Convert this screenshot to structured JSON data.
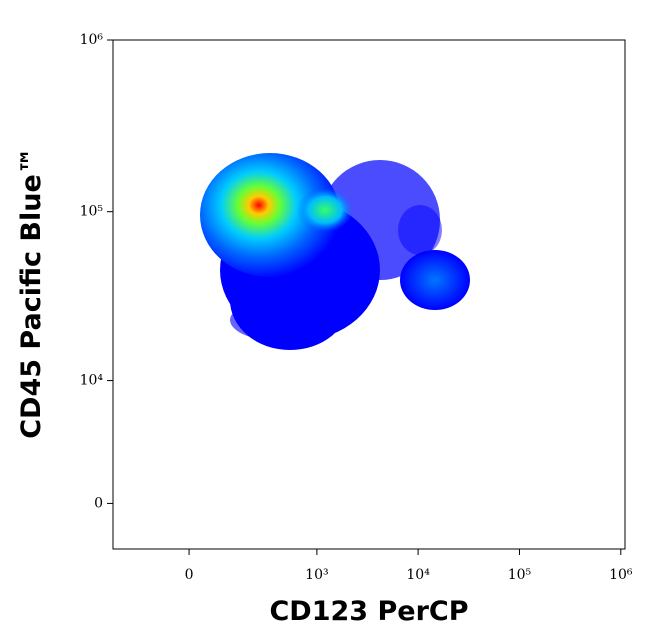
{
  "chart_data": {
    "type": "density",
    "x_label": "CD123 PerCP",
    "y_label": "CD45 Pacific Blue™",
    "x_scale": "biexponential",
    "y_scale": "biexponential",
    "xlim": [
      -300,
      1100000
    ],
    "ylim": [
      -2600,
      1000000
    ],
    "xticks": [
      {
        "value": 0,
        "label": "0"
      },
      {
        "value": 1000,
        "label": "10³"
      },
      {
        "value": 10000,
        "label": "10⁴"
      },
      {
        "value": 100000,
        "label": "10⁵"
      },
      {
        "value": 1000000,
        "label": "10⁶"
      }
    ],
    "yticks": [
      {
        "value": 0,
        "label": "0"
      },
      {
        "value": 10000,
        "label": "10⁴"
      },
      {
        "value": 100000,
        "label": "10⁵"
      },
      {
        "value": 1000000,
        "label": "10⁶"
      }
    ]
  }
}
